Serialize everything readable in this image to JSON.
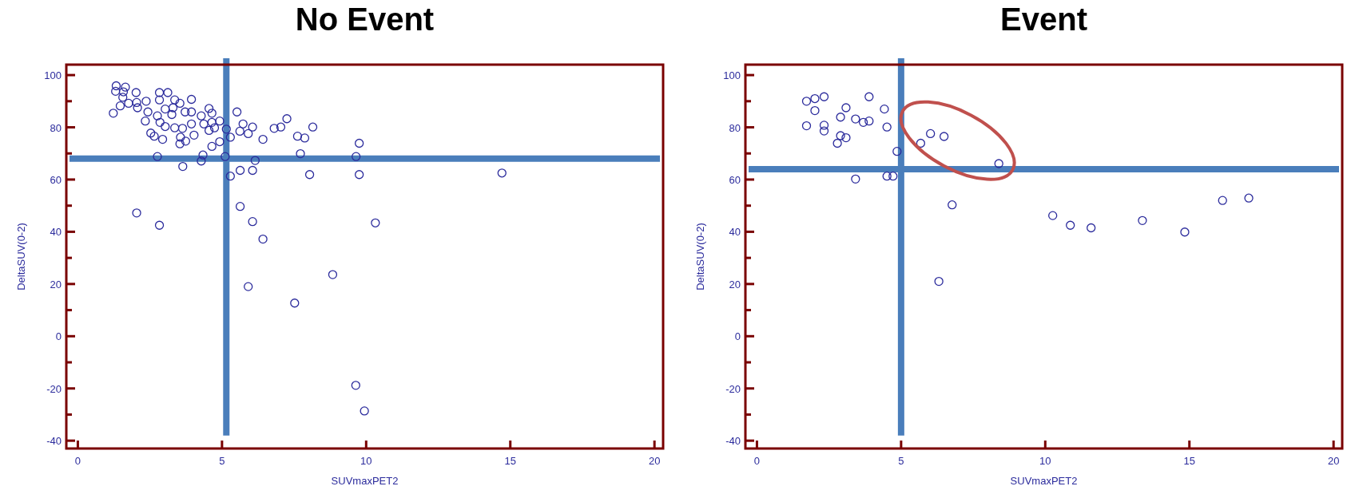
{
  "chart_data": [
    {
      "type": "scatter",
      "title": "No Event",
      "xlabel": "SUVmaxPET2",
      "ylabel": "DeltaSUV(0-2)",
      "color": "#2b2b9c",
      "marker": "circle",
      "xlim": [
        -0.4,
        20.3
      ],
      "ylim": [
        -43,
        104
      ],
      "xticks": [
        0,
        5,
        10,
        15,
        20
      ],
      "yticks": [
        -40,
        {
          "value": -30,
          "label": null
        },
        -20,
        {
          "value": -10,
          "label": null
        },
        0,
        {
          "value": 10,
          "label": null
        },
        20,
        {
          "value": 30,
          "label": null
        },
        40,
        {
          "value": 50,
          "label": null
        },
        60,
        {
          "value": 70,
          "label": null
        },
        80,
        {
          "value": 90,
          "label": null
        },
        100
      ],
      "ref_lines": [
        {
          "axis": "y",
          "value": 68,
          "color": "#4a7ebb"
        },
        {
          "axis": "x",
          "value": 5.15,
          "color": "#4a7ebb"
        }
      ],
      "x": [
        1.23,
        1.33,
        1.31,
        1.47,
        1.58,
        1.65,
        1.56,
        1.76,
        2.02,
        2.04,
        2.07,
        2.37,
        2.34,
        2.43,
        2.53,
        2.65,
        2.76,
        2.83,
        2.83,
        2.85,
        2.94,
        3.03,
        3.12,
        3.03,
        3.3,
        3.36,
        3.26,
        3.36,
        3.54,
        3.63,
        3.56,
        3.54,
        3.74,
        3.72,
        3.94,
        3.94,
        3.94,
        4.03,
        4.28,
        4.37,
        4.55,
        4.65,
        4.55,
        4.74,
        4.65,
        4.92,
        4.65,
        4.92,
        5.15,
        5.29,
        5.52,
        5.73,
        5.62,
        5.91,
        6.06,
        6.42,
        6.81,
        7.04,
        7.25,
        7.62,
        7.87,
        8.15,
        7.72,
        9.76,
        9.65,
        9.76,
        8.04,
        2.76,
        3.64,
        4.28,
        4.34,
        5.11,
        5.29,
        5.63,
        6.06,
        6.15,
        5.63,
        6.06,
        6.42,
        2.04,
        2.83,
        8.84,
        5.91,
        14.71,
        10.32,
        7.52,
        9.64,
        9.94
      ],
      "values": [
        85.4,
        95.9,
        93.8,
        88.2,
        93.6,
        95.4,
        91.5,
        89.2,
        93.3,
        89.5,
        87.5,
        90.0,
        82.4,
        85.9,
        77.8,
        76.6,
        84.4,
        93.3,
        90.5,
        81.9,
        75.4,
        80.3,
        93.3,
        87.0,
        87.5,
        90.5,
        84.9,
        79.8,
        89.2,
        79.6,
        76.2,
        73.7,
        74.7,
        85.9,
        90.7,
        85.9,
        81.3,
        77.0,
        84.4,
        81.3,
        87.2,
        85.4,
        78.8,
        79.8,
        81.9,
        82.4,
        72.7,
        74.5,
        79.3,
        76.2,
        85.9,
        81.3,
        78.5,
        77.6,
        80.1,
        75.4,
        79.6,
        80.1,
        83.3,
        76.6,
        75.9,
        80.1,
        69.9,
        73.9,
        68.8,
        61.9,
        61.9,
        68.8,
        65.0,
        67.1,
        69.4,
        68.8,
        61.3,
        63.5,
        63.5,
        67.3,
        49.7,
        43.9,
        37.2,
        47.2,
        42.5,
        23.6,
        19.0,
        62.5,
        43.4,
        12.7,
        -18.8,
        -28.6
      ]
    },
    {
      "type": "scatter",
      "title": "Event",
      "xlabel": "SUVmaxPET2",
      "ylabel": "DeltaSUV(0-2)",
      "color": "#2b2b9c",
      "marker": "circle",
      "xlim": [
        -0.4,
        20.3
      ],
      "ylim": [
        -43,
        104
      ],
      "xticks": [
        0,
        5,
        10,
        15,
        20
      ],
      "yticks": [
        -40,
        {
          "value": -30,
          "label": null
        },
        -20,
        {
          "value": -10,
          "label": null
        },
        0,
        {
          "value": 10,
          "label": null
        },
        20,
        {
          "value": 30,
          "label": null
        },
        40,
        {
          "value": 50,
          "label": null
        },
        60,
        {
          "value": 70,
          "label": null
        },
        80,
        {
          "value": 90,
          "label": null
        },
        100
      ],
      "ref_lines": [
        {
          "axis": "y",
          "value": 64,
          "color": "#4a7ebb"
        },
        {
          "axis": "x",
          "value": 5.0,
          "color": "#4a7ebb"
        }
      ],
      "x": [
        1.72,
        1.72,
        2.01,
        2.01,
        2.33,
        2.33,
        2.33,
        2.79,
        2.9,
        2.9,
        3.09,
        3.09,
        3.42,
        3.42,
        3.69,
        3.89,
        3.89,
        4.42,
        4.51,
        4.51,
        4.72,
        4.86,
        5.68,
        6.02,
        6.49,
        8.39,
        6.77,
        6.31,
        10.26,
        10.87,
        11.59,
        13.37,
        14.84,
        16.15,
        17.06
      ],
      "values": [
        90.0,
        80.6,
        91.0,
        86.4,
        91.7,
        80.8,
        78.6,
        73.9,
        83.9,
        76.8,
        87.5,
        76.0,
        83.2,
        60.2,
        81.9,
        91.7,
        82.4,
        87.0,
        80.1,
        61.3,
        61.3,
        70.8,
        73.9,
        77.6,
        76.5,
        66.1,
        50.3,
        21.0,
        46.2,
        42.5,
        41.5,
        44.3,
        39.9,
        52.0,
        52.9
      ]
    }
  ]
}
